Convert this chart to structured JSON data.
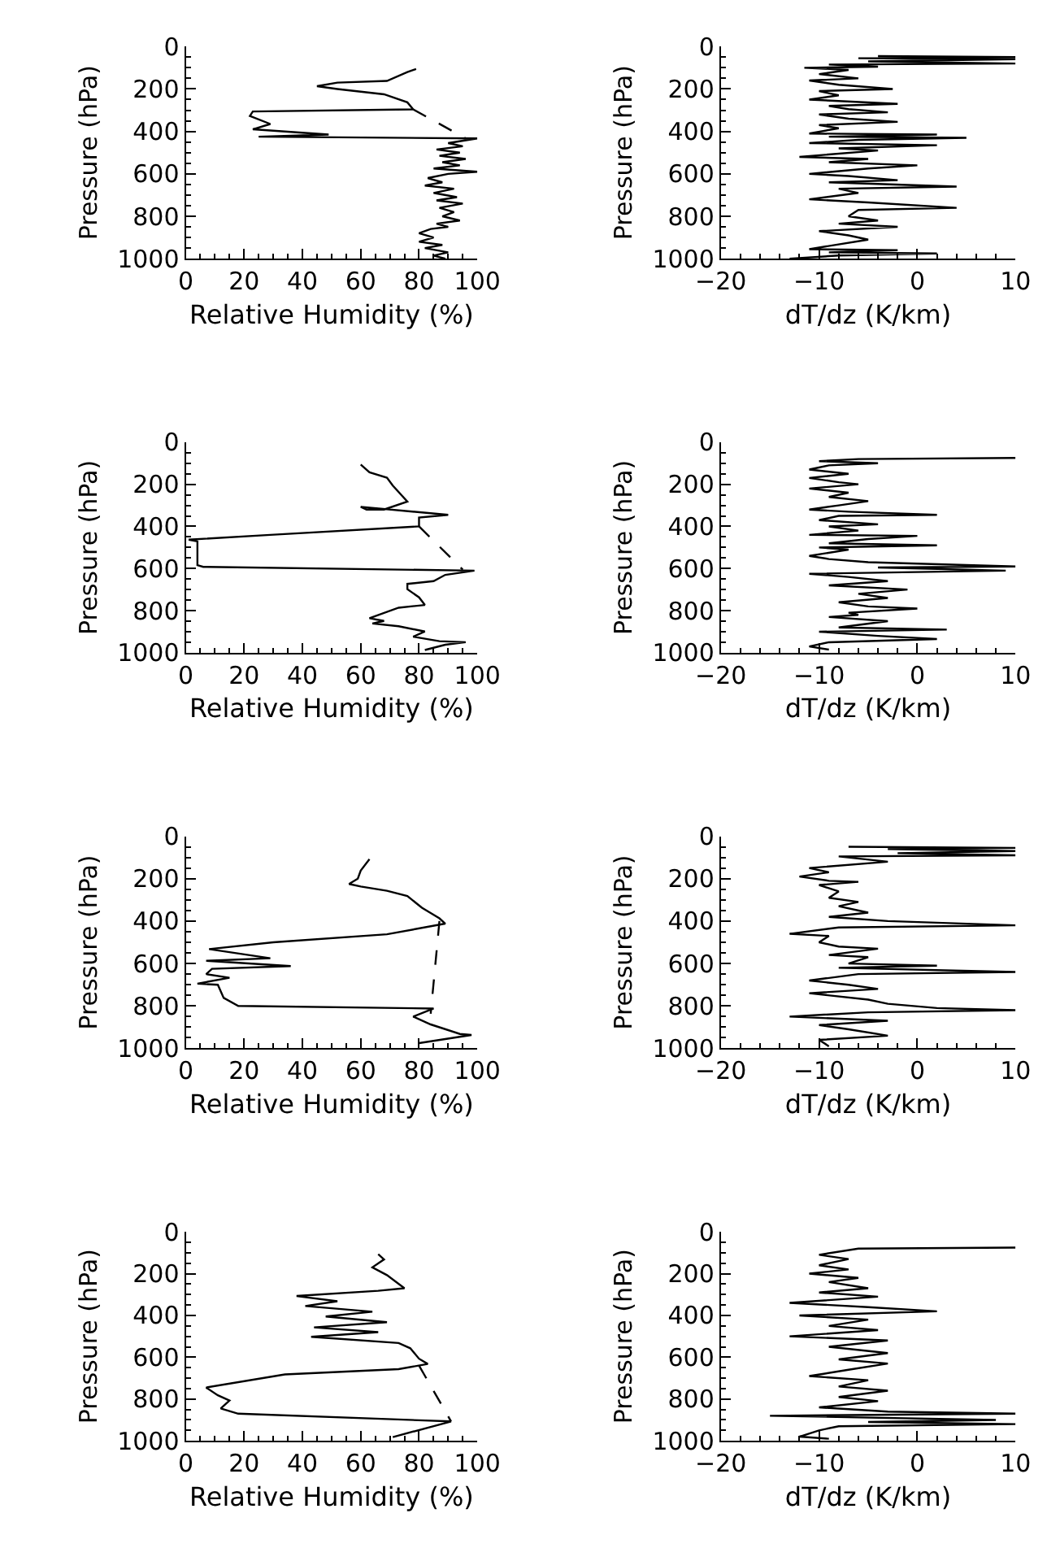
{
  "chart_data": [
    {
      "type": "line",
      "xlabel": "Relative Humidity (%)",
      "ylabel": "Pressure (hPa)",
      "xlim": [
        0,
        100
      ],
      "xticks": [
        0,
        20,
        40,
        60,
        80,
        100
      ],
      "ylim": [
        1000,
        0
      ],
      "yticks": [
        0,
        200,
        400,
        600,
        800,
        1000
      ],
      "series": [
        {
          "color": "#000000",
          "line_style": "solid",
          "x": [
            79,
            76,
            69,
            52,
            45,
            52,
            68,
            76,
            78,
            23,
            22,
            29,
            23,
            49,
            25,
            100,
            90,
            95,
            86,
            94,
            87,
            96,
            88,
            94,
            85,
            100,
            90,
            83,
            88,
            82,
            92,
            85,
            93,
            86,
            95,
            87,
            92,
            88,
            94,
            86,
            90,
            84,
            80,
            85,
            80,
            88,
            82,
            90,
            85,
            89
          ],
          "values": [
            106,
            120,
            162,
            170,
            187,
            200,
            225,
            263,
            296,
            306,
            327,
            365,
            390,
            415,
            425,
            433,
            455,
            470,
            485,
            500,
            515,
            530,
            545,
            560,
            575,
            590,
            600,
            620,
            640,
            655,
            670,
            690,
            710,
            725,
            740,
            760,
            780,
            800,
            820,
            835,
            850,
            860,
            880,
            900,
            920,
            935,
            950,
            970,
            985,
            1000
          ]
        },
        {
          "color": "#000000",
          "line_style": "dashed",
          "x": [
            78,
            96
          ],
          "values": [
            296,
            433
          ]
        }
      ]
    },
    {
      "type": "line",
      "xlabel": "dT/dz (K/km)",
      "ylabel": "Pressure (hPa)",
      "xlim": [
        -20,
        10
      ],
      "xticks": [
        -20,
        -10,
        0,
        10
      ],
      "ylim": [
        1000,
        0
      ],
      "yticks": [
        0,
        200,
        400,
        600,
        800,
        1000
      ],
      "series": [
        {
          "color": "#000000",
          "line_style": "solid",
          "x": [
            -4,
            10,
            -6,
            10,
            -5,
            10,
            -9,
            -4,
            -11.5,
            -7,
            -10,
            -6,
            -11,
            -8,
            -2.5,
            -10,
            -8,
            -11,
            -2,
            -9,
            -7,
            -3,
            -10,
            -7,
            -2,
            -10,
            -8,
            -11,
            2,
            -9,
            5,
            -6,
            -11,
            2,
            -8,
            -4,
            -12,
            -5,
            -9,
            0,
            -5,
            -11,
            -7,
            -2,
            -9,
            4,
            -8,
            -6,
            -11,
            -5,
            4,
            -6,
            -7,
            -4,
            -8,
            -2,
            -10,
            -7,
            -5,
            -11,
            -2,
            -9,
            2,
            -8,
            -13
          ],
          "values": [
            45,
            50,
            55,
            60,
            70,
            80,
            85,
            95,
            100,
            110,
            130,
            150,
            160,
            180,
            200,
            210,
            230,
            250,
            270,
            280,
            295,
            310,
            320,
            340,
            355,
            370,
            385,
            410,
            415,
            425,
            430,
            440,
            455,
            465,
            480,
            490,
            520,
            530,
            545,
            560,
            575,
            600,
            610,
            630,
            640,
            660,
            670,
            690,
            720,
            735,
            760,
            770,
            800,
            820,
            835,
            850,
            870,
            890,
            910,
            955,
            960,
            970,
            975,
            985,
            1000
          ]
        }
      ]
    },
    {
      "type": "line",
      "xlabel": "Relative Humidity (%)",
      "ylabel": "Pressure (hPa)",
      "xlim": [
        0,
        100
      ],
      "xticks": [
        0,
        20,
        40,
        60,
        80,
        100
      ],
      "ylim": [
        1000,
        0
      ],
      "yticks": [
        0,
        200,
        400,
        600,
        800,
        1000
      ],
      "series": [
        {
          "color": "#000000",
          "line_style": "solid",
          "x": [
            60,
            63,
            69,
            71,
            76,
            68,
            62,
            60,
            90,
            80,
            80,
            29,
            1,
            4,
            4,
            6,
            99,
            89,
            85,
            76,
            76,
            80,
            82,
            73,
            63,
            68,
            64,
            73,
            82,
            78,
            87,
            96,
            89,
            82
          ],
          "values": [
            106,
            143,
            169,
            206,
            282,
            320,
            320,
            307,
            345,
            358,
            400,
            440,
            463,
            471,
            584,
            592,
            610,
            630,
            660,
            673,
            698,
            737,
            773,
            786,
            836,
            849,
            861,
            874,
            899,
            924,
            945,
            950,
            962,
            987
          ]
        },
        {
          "color": "#000000",
          "line_style": "dashed",
          "x": [
            80,
            95
          ],
          "values": [
            400,
            605
          ]
        }
      ]
    },
    {
      "type": "line",
      "xlabel": "dT/dz (K/km)",
      "ylabel": "Pressure (hPa)",
      "xlim": [
        -20,
        10
      ],
      "xticks": [
        -20,
        -10,
        0,
        10
      ],
      "ylim": [
        1000,
        0
      ],
      "yticks": [
        0,
        200,
        400,
        600,
        800,
        1000
      ],
      "series": [
        {
          "color": "#000000",
          "line_style": "solid",
          "x": [
            10,
            -6,
            -10,
            -4,
            -9,
            -11,
            -7,
            -11,
            -8,
            -6,
            -11,
            -7,
            -9,
            -5,
            -8,
            -11,
            -7,
            2,
            -8,
            -10,
            -4,
            -9,
            -6,
            -11,
            0,
            -5,
            -9,
            2,
            -10,
            -7,
            -11,
            -9,
            -5,
            10,
            -4,
            9,
            -11,
            -7,
            -3,
            -9,
            -1,
            -6,
            -3,
            -8,
            -5,
            0,
            -7,
            -6,
            -9,
            -3,
            -8,
            3,
            -10,
            -4,
            2,
            -9,
            -11,
            -9
          ],
          "values": [
            75,
            80,
            90,
            100,
            110,
            130,
            150,
            170,
            190,
            200,
            220,
            240,
            260,
            280,
            300,
            320,
            330,
            345,
            350,
            370,
            390,
            400,
            420,
            440,
            445,
            460,
            480,
            490,
            500,
            510,
            540,
            555,
            570,
            590,
            595,
            610,
            625,
            640,
            660,
            680,
            700,
            720,
            740,
            760,
            780,
            790,
            810,
            820,
            830,
            850,
            880,
            890,
            900,
            920,
            935,
            950,
            970,
            985
          ]
        }
      ]
    },
    {
      "type": "line",
      "xlabel": "Relative Humidity (%)",
      "ylabel": "Pressure (hPa)",
      "xlim": [
        0,
        100
      ],
      "xticks": [
        0,
        20,
        40,
        60,
        80,
        100
      ],
      "ylim": [
        1000,
        0
      ],
      "yticks": [
        0,
        200,
        400,
        600,
        800,
        1000
      ],
      "series": [
        {
          "color": "#000000",
          "line_style": "solid",
          "x": [
            63,
            60,
            59,
            56,
            60,
            69,
            76,
            81,
            84,
            87,
            89,
            69,
            30,
            8,
            29,
            7,
            36,
            9,
            7,
            15,
            4,
            11,
            13,
            18,
            85,
            78,
            84,
            94,
            98,
            80
          ],
          "values": [
            108,
            162,
            200,
            225,
            237,
            257,
            282,
            337,
            362,
            387,
            412,
            462,
            500,
            532,
            575,
            587,
            612,
            625,
            650,
            667,
            695,
            700,
            762,
            800,
            812,
            850,
            887,
            932,
            937,
            975
          ]
        },
        {
          "color": "#000000",
          "line_style": "dashed",
          "x": [
            87,
            84
          ],
          "values": [
            400,
            837
          ]
        }
      ]
    },
    {
      "type": "line",
      "xlabel": "dT/dz (K/km)",
      "ylabel": "Pressure (hPa)",
      "xlim": [
        -20,
        10
      ],
      "xticks": [
        -20,
        -10,
        0,
        10
      ],
      "ylim": [
        1000,
        0
      ],
      "yticks": [
        0,
        200,
        400,
        600,
        800,
        1000
      ],
      "series": [
        {
          "color": "#000000",
          "line_style": "solid",
          "x": [
            -7,
            10,
            -3,
            10,
            -2,
            10,
            -8,
            -3,
            -11,
            -9,
            -12,
            -9,
            -6,
            -10,
            -8,
            -9,
            -6,
            -8,
            -5,
            -9,
            -3,
            10,
            -8,
            -13,
            -9,
            -10,
            -8,
            -4,
            -9,
            -5,
            -7,
            2,
            -8,
            10,
            -6,
            -11,
            -7,
            -4,
            -11,
            -5,
            -3,
            2,
            10,
            -5,
            -13,
            -3,
            -10,
            -7,
            -3,
            -10,
            -9
          ],
          "values": [
            50,
            55,
            60,
            70,
            80,
            90,
            95,
            120,
            150,
            170,
            190,
            210,
            215,
            230,
            260,
            290,
            310,
            330,
            360,
            380,
            400,
            420,
            430,
            460,
            470,
            500,
            520,
            530,
            560,
            570,
            600,
            610,
            620,
            640,
            650,
            680,
            700,
            720,
            740,
            770,
            790,
            810,
            820,
            830,
            850,
            870,
            890,
            910,
            940,
            960,
            990
          ]
        }
      ]
    },
    {
      "type": "line",
      "xlabel": "Relative Humidity (%)",
      "ylabel": "Pressure (hPa)",
      "xlim": [
        0,
        100
      ],
      "xticks": [
        0,
        20,
        40,
        60,
        80,
        100
      ],
      "ylim": [
        1000,
        0
      ],
      "yticks": [
        0,
        200,
        400,
        600,
        800,
        1000
      ],
      "series": [
        {
          "color": "#000000",
          "line_style": "solid",
          "x": [
            66,
            68,
            64,
            69,
            75,
            66,
            38,
            52,
            41,
            64,
            48,
            69,
            44,
            66,
            43,
            73,
            77,
            80,
            83,
            73,
            34,
            7,
            11,
            15,
            12,
            18,
            91,
            71
          ],
          "values": [
            107,
            132,
            170,
            207,
            270,
            282,
            307,
            332,
            355,
            382,
            405,
            432,
            457,
            480,
            502,
            532,
            557,
            607,
            632,
            657,
            682,
            745,
            782,
            807,
            845,
            870,
            907,
            982
          ]
        },
        {
          "color": "#000000",
          "line_style": "dashed",
          "x": [
            80,
            91
          ],
          "values": [
            640,
            907
          ]
        }
      ]
    },
    {
      "type": "line",
      "xlabel": "dT/dz (K/km)",
      "ylabel": "Pressure (hPa)",
      "xlim": [
        -20,
        10
      ],
      "xticks": [
        -20,
        -10,
        0,
        10
      ],
      "ylim": [
        1000,
        0
      ],
      "yticks": [
        0,
        200,
        400,
        600,
        800,
        1000
      ],
      "series": [
        {
          "color": "#000000",
          "line_style": "solid",
          "x": [
            10,
            -6,
            -10,
            -7,
            -10,
            -7,
            -11,
            -6,
            -9,
            -5,
            -10,
            -4,
            -13,
            -5,
            2,
            -12,
            -5,
            -9,
            -4,
            -13,
            -3,
            -9,
            -3,
            -8,
            -3,
            -7,
            -11,
            -5,
            -8,
            -3,
            -8,
            -4,
            -10,
            -3,
            10,
            -15,
            8,
            -5,
            10,
            -8,
            -10,
            -12,
            -9
          ],
          "values": [
            75,
            80,
            110,
            130,
            160,
            180,
            200,
            220,
            240,
            270,
            290,
            310,
            340,
            360,
            380,
            400,
            420,
            450,
            470,
            500,
            520,
            550,
            580,
            610,
            630,
            660,
            690,
            710,
            740,
            760,
            790,
            810,
            840,
            860,
            870,
            880,
            900,
            910,
            920,
            930,
            950,
            980,
            990
          ]
        }
      ]
    }
  ]
}
